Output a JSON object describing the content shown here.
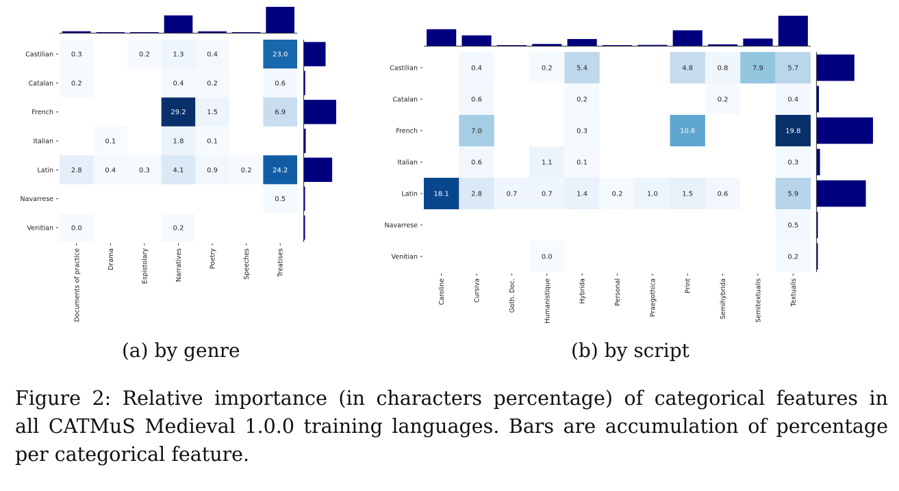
{
  "chart_data": [
    {
      "type": "heatmap",
      "subtitle": "(a) by genre",
      "rows": [
        "Castilian",
        "Catalan",
        "French",
        "Italian",
        "Latin",
        "Navarrese",
        "Venitian"
      ],
      "columns": [
        "Documents of practice",
        "Drama",
        "Espistolary",
        "Narratives",
        "Poetry",
        "Speeches",
        "Treatises"
      ],
      "values": [
        [
          0.3,
          null,
          0.2,
          1.3,
          0.4,
          null,
          23.0
        ],
        [
          0.2,
          null,
          null,
          0.4,
          0.2,
          null,
          0.6
        ],
        [
          null,
          null,
          null,
          29.2,
          1.5,
          null,
          6.9
        ],
        [
          null,
          0.1,
          null,
          1.8,
          0.1,
          null,
          null
        ],
        [
          2.8,
          0.4,
          0.3,
          4.1,
          0.9,
          0.2,
          24.2
        ],
        [
          null,
          null,
          null,
          null,
          null,
          null,
          0.5
        ],
        [
          0.0,
          null,
          null,
          0.2,
          null,
          null,
          null
        ]
      ],
      "colormap": "Blues",
      "vmax": 29.2,
      "marginal_bars": "column and row sums",
      "bar_color": "#00007f"
    },
    {
      "type": "heatmap",
      "subtitle": "(b) by script",
      "rows": [
        "Castilian",
        "Catalan",
        "French",
        "Italian",
        "Latin",
        "Navarrese",
        "Venitian"
      ],
      "columns": [
        "Caroline",
        "Cursiva",
        "Goth. Doc.",
        "Humanistique",
        "Hybrida",
        "Personal",
        "Praegothica",
        "Print",
        "Semihybrida",
        "Semitextualis",
        "Textualis"
      ],
      "values": [
        [
          null,
          0.4,
          null,
          0.2,
          5.4,
          null,
          null,
          4.8,
          0.8,
          7.9,
          5.7
        ],
        [
          null,
          0.6,
          null,
          null,
          0.2,
          null,
          null,
          null,
          0.2,
          null,
          0.4
        ],
        [
          null,
          7.0,
          null,
          null,
          0.3,
          null,
          null,
          10.6,
          null,
          null,
          19.8
        ],
        [
          null,
          0.6,
          null,
          1.1,
          0.1,
          null,
          null,
          null,
          null,
          null,
          0.3
        ],
        [
          18.1,
          2.8,
          0.7,
          0.7,
          1.4,
          0.2,
          1.0,
          1.5,
          0.6,
          null,
          5.9
        ],
        [
          null,
          null,
          null,
          null,
          null,
          null,
          null,
          null,
          null,
          null,
          0.5
        ],
        [
          null,
          null,
          null,
          0.0,
          null,
          null,
          null,
          null,
          null,
          null,
          0.2
        ]
      ],
      "colormap": "Blues",
      "vmax": 19.8,
      "marginal_bars": "column and row sums",
      "bar_color": "#00007f"
    }
  ],
  "caption": {
    "line1": "Figure 2:  Relative importance (in characters percentage) of categorical features in",
    "line2": "all CATMuS Medieval 1.0.0 training languages. Bars are accumulation of percentage",
    "line3": "per categorical feature."
  }
}
